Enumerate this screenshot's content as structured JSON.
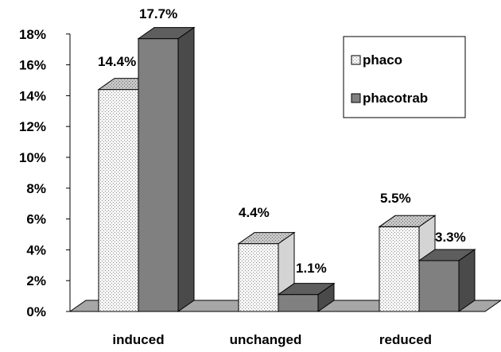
{
  "chart_data": {
    "type": "bar",
    "categories": [
      "induced",
      "unchanged",
      "reduced"
    ],
    "series": [
      {
        "name": "phaco",
        "values": [
          14.4,
          4.4,
          5.5
        ],
        "labels": [
          "14.4%",
          "4.4%",
          "5.5%"
        ],
        "color": "#f2f2f2",
        "pattern": "dotted"
      },
      {
        "name": "phacotrab",
        "values": [
          17.7,
          1.1,
          3.3
        ],
        "labels": [
          "17.7%",
          "1.1%",
          "3.3%"
        ],
        "color": "#808080",
        "pattern": "solid"
      }
    ],
    "y_ticks": [
      "0%",
      "2%",
      "4%",
      "6%",
      "8%",
      "10%",
      "12%",
      "14%",
      "16%",
      "18%"
    ],
    "ylim": [
      0,
      18
    ],
    "grid": false,
    "legend_position": "top-right",
    "style": "3d-clustered-column"
  }
}
